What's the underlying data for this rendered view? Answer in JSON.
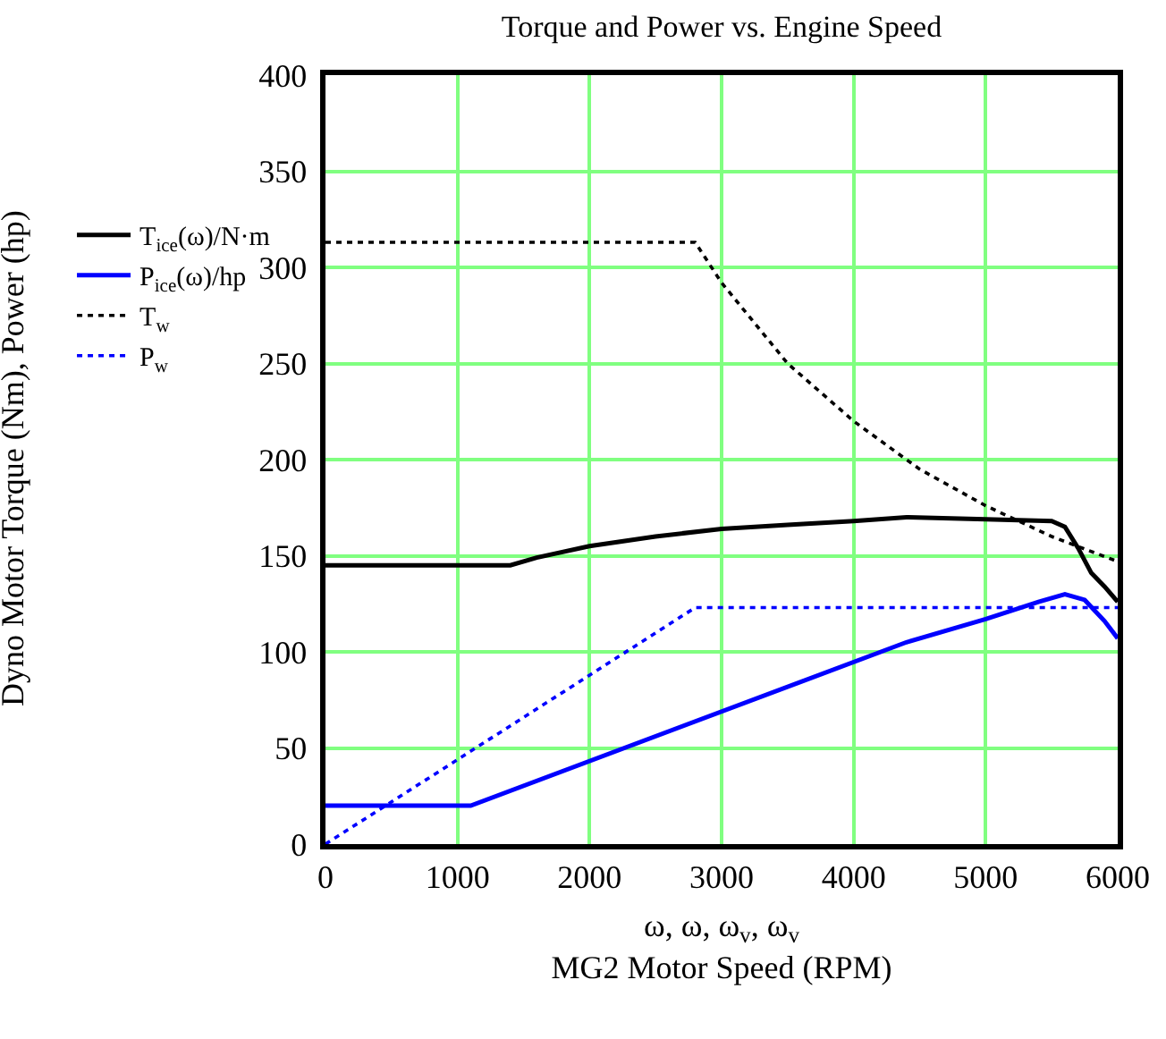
{
  "chart_data": {
    "type": "line",
    "title": "Torque and Power vs. Engine Speed",
    "xlabel": "ω, ω, ω$_{v}$, ω$_{v}$\nMG2 Motor Speed (RPM)",
    "annotations": [
      "Dyno Motor Torque (Nm), Power (hp)"
    ],
    "xlim": [
      0,
      6000
    ],
    "xticks": [
      0,
      1000,
      2000,
      3000,
      4000,
      5000,
      6000
    ],
    "ylim": [
      0,
      400
    ],
    "yticks": [
      0,
      50,
      100,
      150,
      200,
      250,
      300,
      350,
      400
    ],
    "grid": true,
    "legend": "left",
    "marker": "none",
    "series": [
      {
        "name": "T$_{ice}$(ω)/N·m",
        "color": "#000000",
        "line_style": "solid",
        "x": [
          0,
          1400,
          1600,
          2000,
          2500,
          3000,
          3500,
          4000,
          4400,
          5000,
          5500,
          5600,
          5700,
          5800,
          5900,
          6000
        ],
        "values": [
          145,
          145,
          149,
          155,
          160,
          164,
          166,
          168,
          170,
          169,
          168,
          165,
          154,
          141,
          134,
          126
        ]
      },
      {
        "name": "P$_{ice}$(ω)/hp",
        "color": "#0000ff",
        "line_style": "solid",
        "x": [
          0,
          1100,
          4400,
          5000,
          5400,
          5600,
          5750,
          5900,
          6000
        ],
        "values": [
          20,
          20,
          105,
          117,
          126,
          130,
          127,
          116,
          107
        ]
      },
      {
        "name": "T$_{w}$",
        "color": "#000000",
        "line_style": "dotted",
        "x": [
          0,
          2800,
          3000,
          3500,
          4000,
          4500,
          5000,
          5500,
          6000
        ],
        "values": [
          313,
          313,
          292,
          250,
          220,
          195,
          176,
          160,
          147
        ]
      },
      {
        "name": "P$_{w}$",
        "color": "#0000ff",
        "line_style": "dotted",
        "x": [
          0,
          2800,
          6000
        ],
        "values": [
          0,
          123,
          123
        ]
      }
    ]
  }
}
